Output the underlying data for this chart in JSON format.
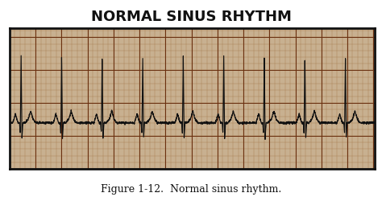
{
  "title": "NORMAL SINUS RHYTHM",
  "caption": "Figure 1-12.  Normal sinus rhythm.",
  "title_fontsize": 13,
  "caption_fontsize": 9,
  "bg_color": "#c8b090",
  "ecg_color": "#111111",
  "grid_minor_color": "#a07040",
  "grid_major_color": "#6a3010",
  "box_color": "#111111",
  "num_beats": 9,
  "beat_period": 0.78,
  "ecg_baseline": 0.0,
  "p_amp": 0.07,
  "q_amp": -0.08,
  "r_amp": 0.52,
  "s_amp": -0.12,
  "t_amp": 0.09,
  "xlim": [
    0,
    7.02
  ],
  "ylim": [
    -0.35,
    0.72
  ]
}
